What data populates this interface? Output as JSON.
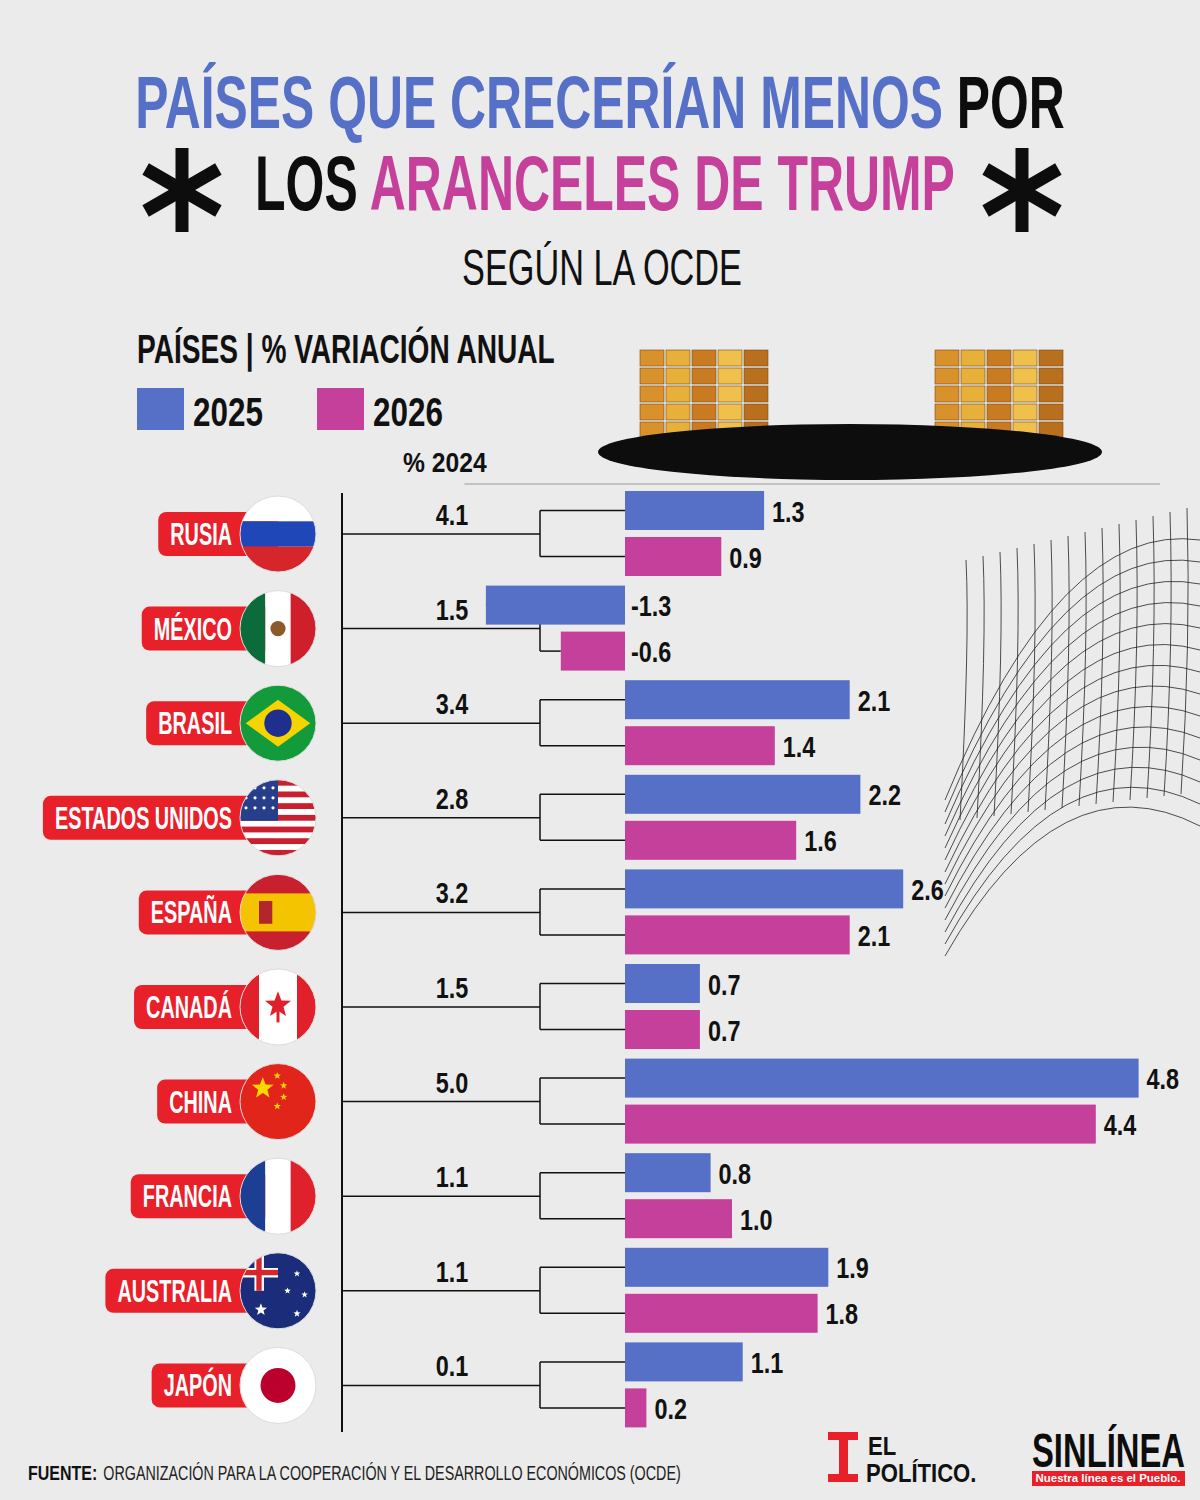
{
  "chart_data": {
    "type": "bar",
    "title": "PAÍSES QUE CRECERÍAN MENOS POR LOS ARANCELES DE TRUMP",
    "subtitle": "SEGÚN LA OCDE",
    "legend_title": "PAÍSES | % VARIACIÓN ANUAL",
    "orientation": "horizontal",
    "data_labels": true,
    "tick_labels": false,
    "grid": false,
    "legend": "top-left",
    "categories": [
      "RUSIA",
      "MÉXICO",
      "BRASIL",
      "ESTADOS UNIDOS",
      "ESPAÑA",
      "CANADÁ",
      "CHINA",
      "FRANCIA",
      "AUSTRALIA",
      "JAPÓN"
    ],
    "series": [
      {
        "name": "2025",
        "color": "#5570c6",
        "values": [
          1.3,
          -1.3,
          2.1,
          2.2,
          2.6,
          0.7,
          4.8,
          0.8,
          1.9,
          1.1
        ],
        "value_labels": [
          "1.3",
          "-1.3",
          "2.1",
          "2.2",
          "2.6",
          "0.7",
          "4.8",
          "0.8",
          "1.9",
          "1.1"
        ]
      },
      {
        "name": "2026",
        "color": "#c5409a",
        "values": [
          0.9,
          -0.6,
          1.4,
          1.6,
          2.1,
          0.7,
          4.4,
          1.0,
          1.8,
          0.2
        ],
        "value_labels": [
          "0.9",
          "-0.6",
          "1.4",
          "1.6",
          "2.1",
          "0.7",
          "4.4",
          "1.0",
          "1.8",
          "0.2"
        ]
      }
    ],
    "growth_2024": {
      "label": "% 2024",
      "values": [
        4.1,
        1.5,
        3.4,
        2.8,
        3.2,
        1.5,
        5.0,
        1.1,
        1.1,
        0.1
      ],
      "value_labels": [
        "4.1",
        "1.5",
        "3.4",
        "2.8",
        "3.2",
        "1.5",
        "5.0",
        "1.1",
        "1.1",
        "0.1"
      ]
    },
    "xlim": [
      -1.5,
      5
    ],
    "source_label": "FUENTE:",
    "source": "ORGANIZACIÓN PARA LA COOPERACIÓN Y EL DESARROLLO ECONÓMICOS (OCDE)",
    "logo_1": [
      "EL",
      "POLÍTICO."
    ],
    "logo_2": "SINLÍNEA",
    "tagline": "Nuestra línea es el Pueblo."
  }
}
